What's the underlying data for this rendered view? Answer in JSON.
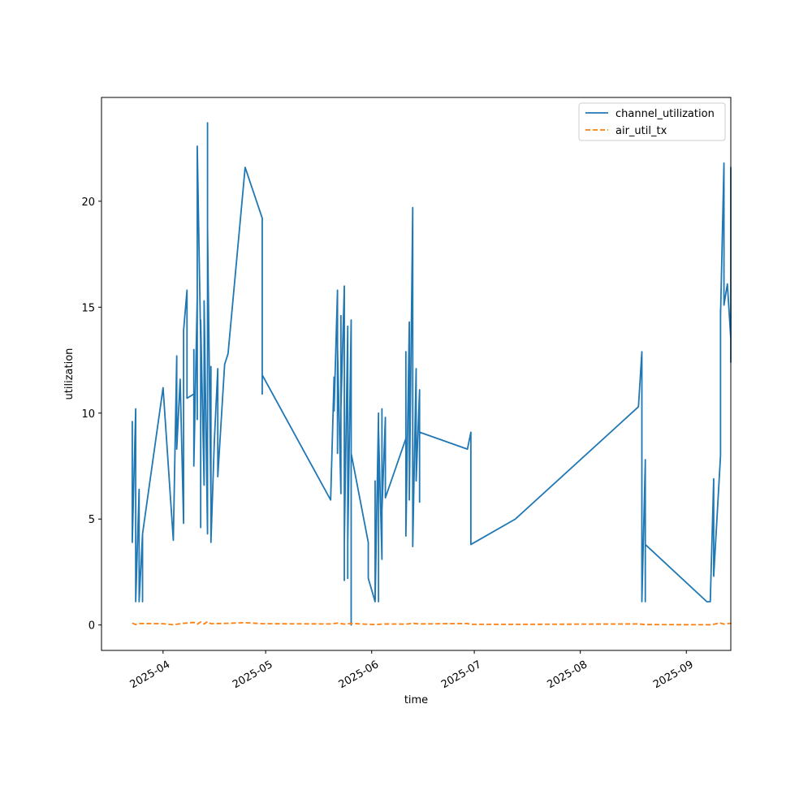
{
  "chart_data": {
    "type": "line",
    "title": "",
    "xlabel": "time",
    "ylabel": "utilization",
    "x_type": "date",
    "xlim": [
      "2025-03-14",
      "2025-09-14"
    ],
    "ylim": [
      -1.2,
      24.9
    ],
    "x_ticks": [
      {
        "date": "2025-04-01",
        "label": "2025-04"
      },
      {
        "date": "2025-05-01",
        "label": "2025-05"
      },
      {
        "date": "2025-06-01",
        "label": "2025-06"
      },
      {
        "date": "2025-07-01",
        "label": "2025-07"
      },
      {
        "date": "2025-08-01",
        "label": "2025-08"
      },
      {
        "date": "2025-09-01",
        "label": "2025-09"
      }
    ],
    "y_ticks": [
      {
        "value": 0,
        "label": "0"
      },
      {
        "value": 5,
        "label": "5"
      },
      {
        "value": 10,
        "label": "10"
      },
      {
        "value": 15,
        "label": "15"
      },
      {
        "value": 20,
        "label": "20"
      }
    ],
    "grid": false,
    "legend_position": "top-right",
    "series": [
      {
        "name": "channel_utilization",
        "color": "#1f77b4",
        "style": "solid",
        "points": [
          [
            "2025-03-23",
            7.9
          ],
          [
            "2025-03-23",
            9.6
          ],
          [
            "2025-03-23",
            3.9
          ],
          [
            "2025-03-24",
            10.2
          ],
          [
            "2025-03-24",
            3.1
          ],
          [
            "2025-03-24",
            9.9
          ],
          [
            "2025-03-24",
            1.1
          ],
          [
            "2025-03-25",
            6.4
          ],
          [
            "2025-03-25",
            1.1
          ],
          [
            "2025-03-26",
            4.3
          ],
          [
            "2025-03-26",
            1.1
          ],
          [
            "2025-03-26",
            4.3
          ],
          [
            "2025-04-01",
            11.2
          ],
          [
            "2025-04-04",
            4.0
          ],
          [
            "2025-04-05",
            12.7
          ],
          [
            "2025-04-05",
            8.3
          ],
          [
            "2025-04-06",
            11.6
          ],
          [
            "2025-04-07",
            4.8
          ],
          [
            "2025-04-07",
            13.9
          ],
          [
            "2025-04-08",
            15.8
          ],
          [
            "2025-04-08",
            10.7
          ],
          [
            "2025-04-10",
            10.9
          ],
          [
            "2025-04-10",
            13.0
          ],
          [
            "2025-04-10",
            7.5
          ],
          [
            "2025-04-11",
            15.5
          ],
          [
            "2025-04-11",
            9.7
          ],
          [
            "2025-04-11",
            15.8
          ],
          [
            "2025-04-11",
            10.4
          ],
          [
            "2025-04-11",
            22.6
          ],
          [
            "2025-04-12",
            13.3
          ],
          [
            "2025-04-12",
            4.6
          ],
          [
            "2025-04-12",
            14.4
          ],
          [
            "2025-04-13",
            6.6
          ],
          [
            "2025-04-13",
            14.8
          ],
          [
            "2025-04-13",
            10.2
          ],
          [
            "2025-04-13",
            15.3
          ],
          [
            "2025-04-14",
            4.3
          ],
          [
            "2025-04-14",
            23.7
          ],
          [
            "2025-04-14",
            6.2
          ],
          [
            "2025-04-14",
            18.8
          ],
          [
            "2025-04-15",
            5.9
          ],
          [
            "2025-04-15",
            12.2
          ],
          [
            "2025-04-15",
            3.9
          ],
          [
            "2025-04-16",
            8.7
          ],
          [
            "2025-04-17",
            12.1
          ],
          [
            "2025-04-17",
            7.0
          ],
          [
            "2025-04-19",
            12.3
          ],
          [
            "2025-04-20",
            12.8
          ],
          [
            "2025-04-25",
            21.6
          ],
          [
            "2025-04-30",
            19.2
          ],
          [
            "2025-04-30",
            10.9
          ],
          [
            "2025-04-30",
            11.8
          ],
          [
            "2025-05-20",
            5.9
          ],
          [
            "2025-05-21",
            11.7
          ],
          [
            "2025-05-21",
            10.1
          ],
          [
            "2025-05-22",
            15.8
          ],
          [
            "2025-05-22",
            8.1
          ],
          [
            "2025-05-22",
            13.1
          ],
          [
            "2025-05-23",
            6.2
          ],
          [
            "2025-05-23",
            14.6
          ],
          [
            "2025-05-23",
            10.2
          ],
          [
            "2025-05-24",
            16.0
          ],
          [
            "2025-05-24",
            2.1
          ],
          [
            "2025-05-24",
            14.6
          ],
          [
            "2025-05-24",
            3.9
          ],
          [
            "2025-05-25",
            14.1
          ],
          [
            "2025-05-25",
            2.2
          ],
          [
            "2025-05-25",
            11.5
          ],
          [
            "2025-05-25",
            3.9
          ],
          [
            "2025-05-26",
            14.4
          ],
          [
            "2025-05-26",
            0.0
          ],
          [
            "2025-05-26",
            8.1
          ],
          [
            "2025-05-31",
            3.9
          ],
          [
            "2025-05-31",
            2.2
          ],
          [
            "2025-06-02",
            1.1
          ],
          [
            "2025-06-02",
            6.8
          ],
          [
            "2025-06-02",
            1.1
          ],
          [
            "2025-06-03",
            10.0
          ],
          [
            "2025-06-03",
            1.1
          ],
          [
            "2025-06-03",
            9.2
          ],
          [
            "2025-06-04",
            3.1
          ],
          [
            "2025-06-04",
            10.2
          ],
          [
            "2025-06-04",
            5.4
          ],
          [
            "2025-06-05",
            9.8
          ],
          [
            "2025-06-05",
            6.0
          ],
          [
            "2025-06-11",
            8.8
          ],
          [
            "2025-06-11",
            12.9
          ],
          [
            "2025-06-11",
            4.2
          ],
          [
            "2025-06-12",
            14.3
          ],
          [
            "2025-06-12",
            5.9
          ],
          [
            "2025-06-13",
            19.7
          ],
          [
            "2025-06-13",
            6.0
          ],
          [
            "2025-06-13",
            16.4
          ],
          [
            "2025-06-13",
            3.7
          ],
          [
            "2025-06-14",
            12.1
          ],
          [
            "2025-06-14",
            6.8
          ],
          [
            "2025-06-15",
            11.1
          ],
          [
            "2025-06-15",
            5.8
          ],
          [
            "2025-06-15",
            9.1
          ],
          [
            "2025-06-29",
            8.3
          ],
          [
            "2025-06-30",
            9.1
          ],
          [
            "2025-06-30",
            3.8
          ],
          [
            "2025-06-30",
            7.2
          ],
          [
            "2025-06-30",
            3.8
          ],
          [
            "2025-07-13",
            5.0
          ],
          [
            "2025-08-18",
            10.3
          ],
          [
            "2025-08-19",
            12.9
          ],
          [
            "2025-08-19",
            2.2
          ],
          [
            "2025-08-19",
            12.8
          ],
          [
            "2025-08-19",
            1.1
          ],
          [
            "2025-08-20",
            7.7
          ],
          [
            "2025-08-20",
            1.1
          ],
          [
            "2025-08-20",
            7.8
          ],
          [
            "2025-08-20",
            3.8
          ],
          [
            "2025-09-07",
            1.1
          ],
          [
            "2025-09-08",
            1.1
          ],
          [
            "2025-09-09",
            6.9
          ],
          [
            "2025-09-09",
            2.3
          ],
          [
            "2025-09-11",
            8.0
          ],
          [
            "2025-09-11",
            14.9
          ],
          [
            "2025-09-11",
            14.6
          ],
          [
            "2025-09-12",
            21.8
          ],
          [
            "2025-09-12",
            15.1
          ],
          [
            "2025-09-13",
            16.1
          ],
          [
            "2025-09-14",
            13.5
          ],
          [
            "2025-09-14",
            21.6
          ],
          [
            "2025-09-14",
            12.4
          ],
          [
            "2025-09-14",
            19.4
          ],
          [
            "2025-09-14",
            13.0
          ],
          [
            "2025-09-14",
            17.5
          ],
          [
            "2025-09-14",
            13.1
          ],
          [
            "2025-09-14",
            14.0
          ]
        ]
      },
      {
        "name": "air_util_tx",
        "color": "#ff7f0e",
        "style": "dashed",
        "points": [
          [
            "2025-03-23",
            0.09
          ],
          [
            "2025-03-24",
            0.02
          ],
          [
            "2025-03-25",
            0.07
          ],
          [
            "2025-04-01",
            0.06
          ],
          [
            "2025-04-04",
            0.01
          ],
          [
            "2025-04-07",
            0.08
          ],
          [
            "2025-04-10",
            0.12
          ],
          [
            "2025-04-11",
            0.04
          ],
          [
            "2025-04-12",
            0.14
          ],
          [
            "2025-04-13",
            0.05
          ],
          [
            "2025-04-14",
            0.16
          ],
          [
            "2025-04-15",
            0.06
          ],
          [
            "2025-04-20",
            0.08
          ],
          [
            "2025-04-25",
            0.11
          ],
          [
            "2025-04-30",
            0.06
          ],
          [
            "2025-05-20",
            0.05
          ],
          [
            "2025-05-22",
            0.09
          ],
          [
            "2025-05-24",
            0.04
          ],
          [
            "2025-05-26",
            0.07
          ],
          [
            "2025-06-02",
            0.02
          ],
          [
            "2025-06-05",
            0.05
          ],
          [
            "2025-06-11",
            0.04
          ],
          [
            "2025-06-13",
            0.08
          ],
          [
            "2025-06-15",
            0.05
          ],
          [
            "2025-06-29",
            0.07
          ],
          [
            "2025-06-30",
            0.03
          ],
          [
            "2025-07-13",
            0.03
          ],
          [
            "2025-08-18",
            0.05
          ],
          [
            "2025-08-20",
            0.02
          ],
          [
            "2025-09-08",
            0.01
          ],
          [
            "2025-09-11",
            0.09
          ],
          [
            "2025-09-12",
            0.04
          ],
          [
            "2025-09-14",
            0.08
          ],
          [
            "2025-09-14",
            0.05
          ]
        ]
      }
    ]
  }
}
